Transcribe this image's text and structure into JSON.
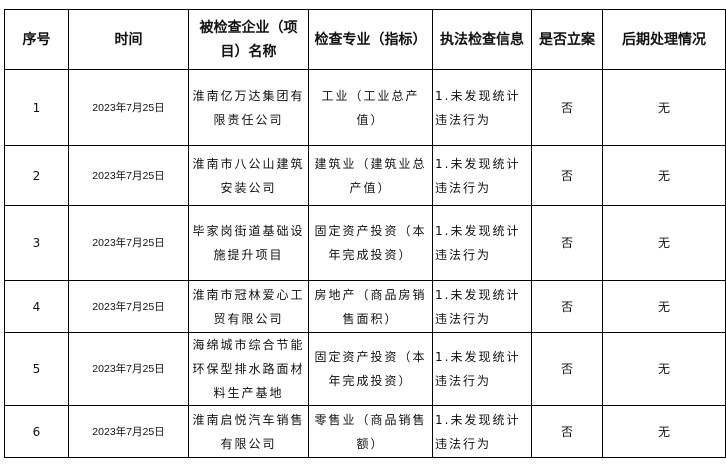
{
  "headers": [
    "序号",
    "时间",
    "被检查企业（项目）名称",
    "检查专业（指标）",
    "执法检查信息",
    "是否立案",
    "后期处理情况"
  ],
  "rows": [
    {
      "no": "1",
      "date": "2023年7月25日",
      "company": "淮南亿万达集团有限责任公司",
      "specialty": "工业（工业总产值）",
      "info": "1.未发现统计违法行为",
      "filed": "否",
      "followup": "无"
    },
    {
      "no": "2",
      "date": "2023年7月25日",
      "company": "淮南市八公山建筑安装公司",
      "specialty": "建筑业（建筑业总产值）",
      "info": "1.未发现统计违法行为",
      "filed": "否",
      "followup": "无"
    },
    {
      "no": "3",
      "date": "2023年7月25日",
      "company": "毕家岗街道基础设施提升项目",
      "specialty": "固定资产投资（本年完成投资）",
      "info": "1.未发现统计违法行为",
      "filed": "否",
      "followup": "无"
    },
    {
      "no": "4",
      "date": "2023年7月25日",
      "company": "淮南市冠林爱心工贸有限公司",
      "specialty": "房地产（商品房销售面积）",
      "info": "1.未发现统计违法行为",
      "filed": "否",
      "followup": "无"
    },
    {
      "no": "5",
      "date": "2023年7月25日",
      "company": "海绵城市综合节能环保型排水路面材料生产基地",
      "specialty": "固定资产投资（本年完成投资）",
      "info": "1.未发现统计违法行为",
      "filed": "否",
      "followup": "无"
    },
    {
      "no": "6",
      "date": "2023年7月25日",
      "company": "淮南启悦汽车销售有限公司",
      "specialty": "零售业（商品销售额）",
      "info": "1.未发现统计违法行为",
      "filed": "否",
      "followup": "无"
    }
  ]
}
